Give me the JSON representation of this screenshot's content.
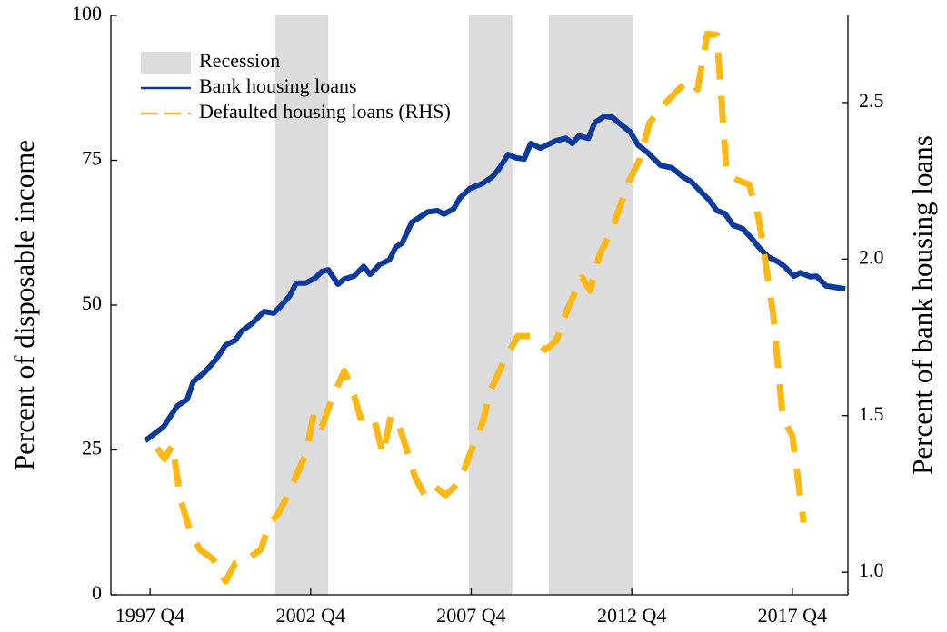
{
  "chart_data": {
    "type": "line",
    "ylabel": "Percent of disposable income",
    "y2label": "Percent of bank housing loans",
    "xlim": [
      1996.53,
      2019.48
    ],
    "xticks": [
      {
        "value": 1997.75,
        "label": "1997 Q4"
      },
      {
        "value": 2002.75,
        "label": "2002 Q4"
      },
      {
        "value": 2007.75,
        "label": "2007 Q4"
      },
      {
        "value": 2012.75,
        "label": "2012 Q4"
      },
      {
        "value": 2017.75,
        "label": "2017 Q4"
      }
    ],
    "ylim": [
      0,
      100
    ],
    "yticks": [
      0,
      25,
      50,
      75,
      100
    ],
    "y2lim": [
      0.928,
      2.778
    ],
    "y2ticks": [
      {
        "value": 1.0,
        "label": "1.0"
      },
      1.5,
      {
        "value": 2.0,
        "label": "2.0"
      },
      2.5
    ],
    "legend": "upper left",
    "recession": {
      "name": "Recession",
      "color": "#dcdcdc",
      "periods": [
        [
          2001.65,
          2003.3
        ],
        [
          2007.68,
          2009.07
        ],
        [
          2010.17,
          2012.8
        ]
      ]
    },
    "series": [
      {
        "name": "Bank housing loans",
        "color": "#0b3a9c",
        "dashed": false,
        "x": [
          1997.6,
          1998.17,
          1998.6,
          1998.9,
          1999.1,
          1999.45,
          1999.8,
          2000.1,
          2000.4,
          2000.6,
          2000.9,
          2001.3,
          2001.6,
          2001.85,
          2002.1,
          2002.3,
          2002.6,
          2002.9,
          2003.1,
          2003.3,
          2003.6,
          2003.8,
          2004.1,
          2004.4,
          2004.6,
          2004.9,
          2005.2,
          2005.4,
          2005.6,
          2005.9,
          2006.1,
          2006.4,
          2006.7,
          2006.9,
          2007.2,
          2007.4,
          2007.7,
          2008.1,
          2008.4,
          2008.6,
          2008.9,
          2009.15,
          2009.4,
          2009.6,
          2009.9,
          2010.1,
          2010.4,
          2010.7,
          2010.9,
          2011.1,
          2011.4,
          2011.6,
          2011.9,
          2012.15,
          2012.4,
          2012.7,
          2012.95,
          2013.25,
          2013.65,
          2014.0,
          2014.35,
          2014.6,
          2014.95,
          2015.15,
          2015.4,
          2015.65,
          2015.9,
          2016.2,
          2016.5,
          2016.7,
          2017.0,
          2017.3,
          2017.5,
          2017.8,
          2018.0,
          2018.3,
          2018.5,
          2018.8,
          2019.4
        ],
        "values": [
          26.6,
          29,
          32.6,
          33.7,
          36.8,
          38.4,
          40.6,
          43.1,
          43.9,
          45.5,
          46.7,
          48.9,
          48.6,
          50,
          51.6,
          53.8,
          53.8,
          54.7,
          55.8,
          56.1,
          53.6,
          54.5,
          55,
          56.7,
          55.3,
          57,
          57.8,
          60,
          60.7,
          64.3,
          65,
          66.1,
          66.3,
          65.7,
          66.6,
          68.5,
          70.1,
          71,
          72.1,
          73.4,
          76,
          75.4,
          75.2,
          77.9,
          77.1,
          77.6,
          78.4,
          78.8,
          77.9,
          79.2,
          78.8,
          81.5,
          82.6,
          82.4,
          81.2,
          79.9,
          77.6,
          76.3,
          74.1,
          73.7,
          72.1,
          71.3,
          69.3,
          68.2,
          66.3,
          65.8,
          63.8,
          63.2,
          61.4,
          60,
          58.3,
          57.5,
          56.7,
          55,
          55.6,
          54.9,
          55,
          53.3,
          52.8
        ]
      },
      {
        "name": "Defaulted housing loans (RHS)",
        "color": "#fdb813",
        "dashed": true,
        "axis": "y2",
        "x": [
          1997.97,
          1998.2,
          1998.45,
          1998.7,
          1999.0,
          1999.3,
          1999.7,
          2000.1,
          2000.4,
          2000.8,
          2001.2,
          2001.45,
          2001.75,
          2002.1,
          2002.6,
          2002.85,
          2003.1,
          2003.4,
          2003.8,
          2004.1,
          2004.3,
          2004.7,
          2005.0,
          2005.25,
          2005.45,
          2005.7,
          2006.0,
          2006.3,
          2006.6,
          2006.95,
          2007.4,
          2007.65,
          2008.1,
          2008.35,
          2008.8,
          2009.2,
          2009.6,
          2010.05,
          2010.4,
          2010.75,
          2011.2,
          2011.45,
          2011.75,
          2012.15,
          2012.65,
          2013.0,
          2013.3,
          2013.75,
          2014.15,
          2014.5,
          2014.8,
          2015.1,
          2015.4,
          2015.7,
          2016.05,
          2016.4,
          2016.7,
          2017.15,
          2017.45,
          2017.75,
          2018.1
        ],
        "values": [
          1.397,
          1.362,
          1.406,
          1.232,
          1.13,
          1.072,
          1.043,
          0.971,
          1.029,
          1.043,
          1.072,
          1.151,
          1.188,
          1.261,
          1.377,
          1.507,
          1.464,
          1.551,
          1.643,
          1.565,
          1.493,
          1.499,
          1.377,
          1.499,
          1.484,
          1.406,
          1.304,
          1.246,
          1.275,
          1.246,
          1.29,
          1.362,
          1.478,
          1.58,
          1.681,
          1.754,
          1.754,
          1.71,
          1.739,
          1.841,
          1.942,
          1.899,
          2.014,
          2.101,
          2.246,
          2.319,
          2.435,
          2.493,
          2.536,
          2.571,
          2.542,
          2.719,
          2.716,
          2.275,
          2.252,
          2.238,
          2.13,
          1.826,
          1.493,
          1.435,
          1.159
        ]
      }
    ]
  }
}
